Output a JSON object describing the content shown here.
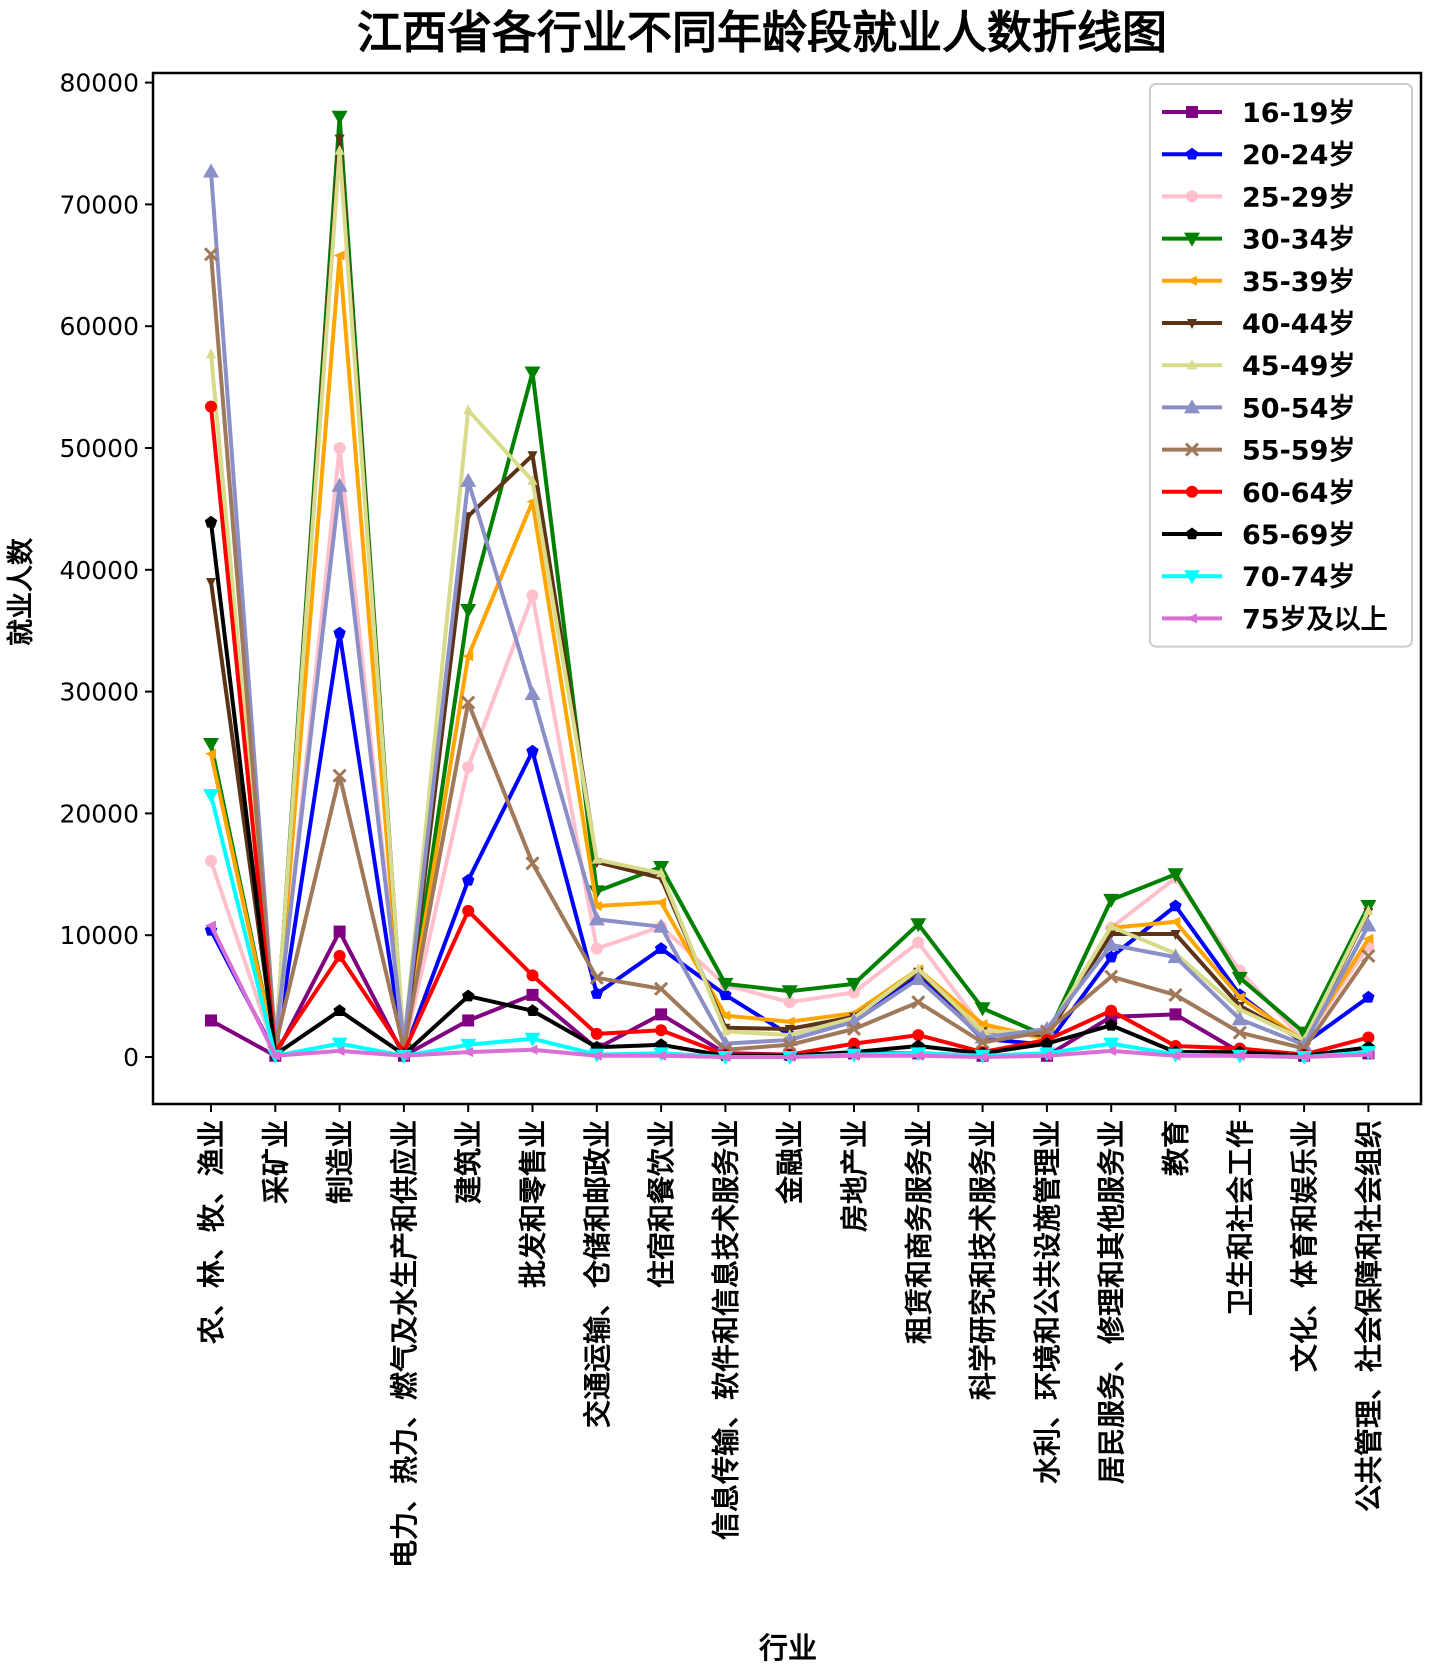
{
  "chart_data": {
    "type": "line",
    "title": "江西省各行业不同年龄段就业人数折线图",
    "xlabel": "行业",
    "ylabel": "就业人数",
    "ylim": [
      -3800,
      81000
    ],
    "yticks": [
      0,
      10000,
      20000,
      30000,
      40000,
      50000,
      60000,
      70000,
      80000
    ],
    "grid": false,
    "legend_position": "upper-right",
    "categories": [
      "农、林、牧、渔业",
      "采矿业",
      "制造业",
      "电力、热力、燃气及水生产和供应业",
      "建筑业",
      "批发和零售业",
      "交通运输、仓储和邮政业",
      "住宿和餐饮业",
      "信息传输、软件和信息技术服务业",
      "金融业",
      "房地产业",
      "租赁和商务服务业",
      "科学研究和技术服务业",
      "水利、环境和公共设施管理业",
      "居民服务、修理和其他服务业",
      "教育",
      "卫生和社会工作",
      "文化、体育和娱乐业",
      "公共管理、社会保障和社会组织"
    ],
    "series": [
      {
        "name": "16-19岁",
        "color": "#800080",
        "marker": "square",
        "values": [
          3000,
          100,
          10300,
          100,
          3000,
          5100,
          700,
          3500,
          300,
          200,
          300,
          300,
          100,
          100,
          3300,
          3500,
          400,
          100,
          300
        ]
      },
      {
        "name": "20-24岁",
        "color": "#0000ff",
        "marker": "pentagon",
        "values": [
          10400,
          300,
          34800,
          300,
          14500,
          25100,
          5200,
          8900,
          5100,
          1800,
          3200,
          6700,
          1500,
          1000,
          8200,
          12400,
          5100,
          1100,
          4900
        ]
      },
      {
        "name": "25-29岁",
        "color": "#ffc0cb",
        "marker": "circle",
        "values": [
          16100,
          400,
          50000,
          600,
          23800,
          37900,
          8900,
          10700,
          5900,
          4500,
          5300,
          9400,
          2400,
          1500,
          10600,
          14700,
          7100,
          1300,
          9100
        ]
      },
      {
        "name": "30-34岁",
        "color": "#008000",
        "marker": "triangle-down",
        "values": [
          25700,
          500,
          77200,
          600,
          36700,
          56200,
          13600,
          15600,
          6000,
          5400,
          6000,
          10900,
          4000,
          1700,
          12900,
          15000,
          6500,
          2000,
          12400
        ]
      },
      {
        "name": "35-39岁",
        "color": "#ffa500",
        "marker": "tri-left",
        "values": [
          24900,
          500,
          65800,
          600,
          32900,
          45600,
          12400,
          12700,
          3400,
          2900,
          3600,
          7200,
          2700,
          1500,
          10600,
          11100,
          4900,
          1300,
          9700
        ]
      },
      {
        "name": "40-44岁",
        "color": "#5c3317",
        "marker": "tri-down",
        "values": [
          39000,
          600,
          75400,
          700,
          44400,
          49400,
          16000,
          14700,
          2400,
          2300,
          3300,
          7000,
          2100,
          1800,
          10100,
          10100,
          4200,
          1300,
          11900
        ]
      },
      {
        "name": "45-49岁",
        "color": "#d8dc8a",
        "marker": "tri-up",
        "values": [
          57700,
          900,
          74400,
          1100,
          53100,
          47300,
          16200,
          15100,
          2100,
          1800,
          3200,
          7200,
          2100,
          2000,
          10700,
          8500,
          3900,
          1400,
          12000
        ]
      },
      {
        "name": "50-54岁",
        "color": "#8b8fc7",
        "marker": "triangle-up",
        "values": [
          72700,
          1200,
          46900,
          1100,
          47300,
          29800,
          11300,
          10700,
          1100,
          1400,
          2900,
          6400,
          1600,
          2300,
          9200,
          8200,
          3100,
          1000,
          10800
        ]
      },
      {
        "name": "55-59岁",
        "color": "#a0785a",
        "marker": "x",
        "values": [
          65900,
          900,
          23100,
          700,
          29100,
          15900,
          6500,
          5600,
          600,
          1000,
          2300,
          4500,
          1200,
          2100,
          6600,
          5100,
          2000,
          700,
          8300
        ]
      },
      {
        "name": "60-64岁",
        "color": "#ff0000",
        "marker": "circle",
        "values": [
          53400,
          400,
          8300,
          400,
          12000,
          6700,
          1900,
          2200,
          200,
          200,
          1100,
          1800,
          400,
          1400,
          3800,
          900,
          700,
          200,
          1600
        ]
      },
      {
        "name": "65-69岁",
        "color": "#000000",
        "marker": "pentagon",
        "values": [
          43900,
          200,
          3800,
          200,
          5000,
          3800,
          800,
          1000,
          100,
          100,
          400,
          900,
          300,
          1100,
          2600,
          400,
          400,
          100,
          800
        ]
      },
      {
        "name": "70-74岁",
        "color": "#00ffff",
        "marker": "triangle-down",
        "values": [
          21500,
          100,
          1100,
          100,
          1000,
          1500,
          200,
          300,
          0,
          0,
          200,
          300,
          100,
          300,
          1100,
          200,
          100,
          0,
          400
        ]
      },
      {
        "name": "75岁及以上",
        "color": "#da70d6",
        "marker": "tri-left",
        "values": [
          10800,
          100,
          500,
          100,
          400,
          600,
          100,
          100,
          0,
          0,
          100,
          100,
          0,
          100,
          500,
          100,
          100,
          0,
          200
        ]
      }
    ]
  }
}
